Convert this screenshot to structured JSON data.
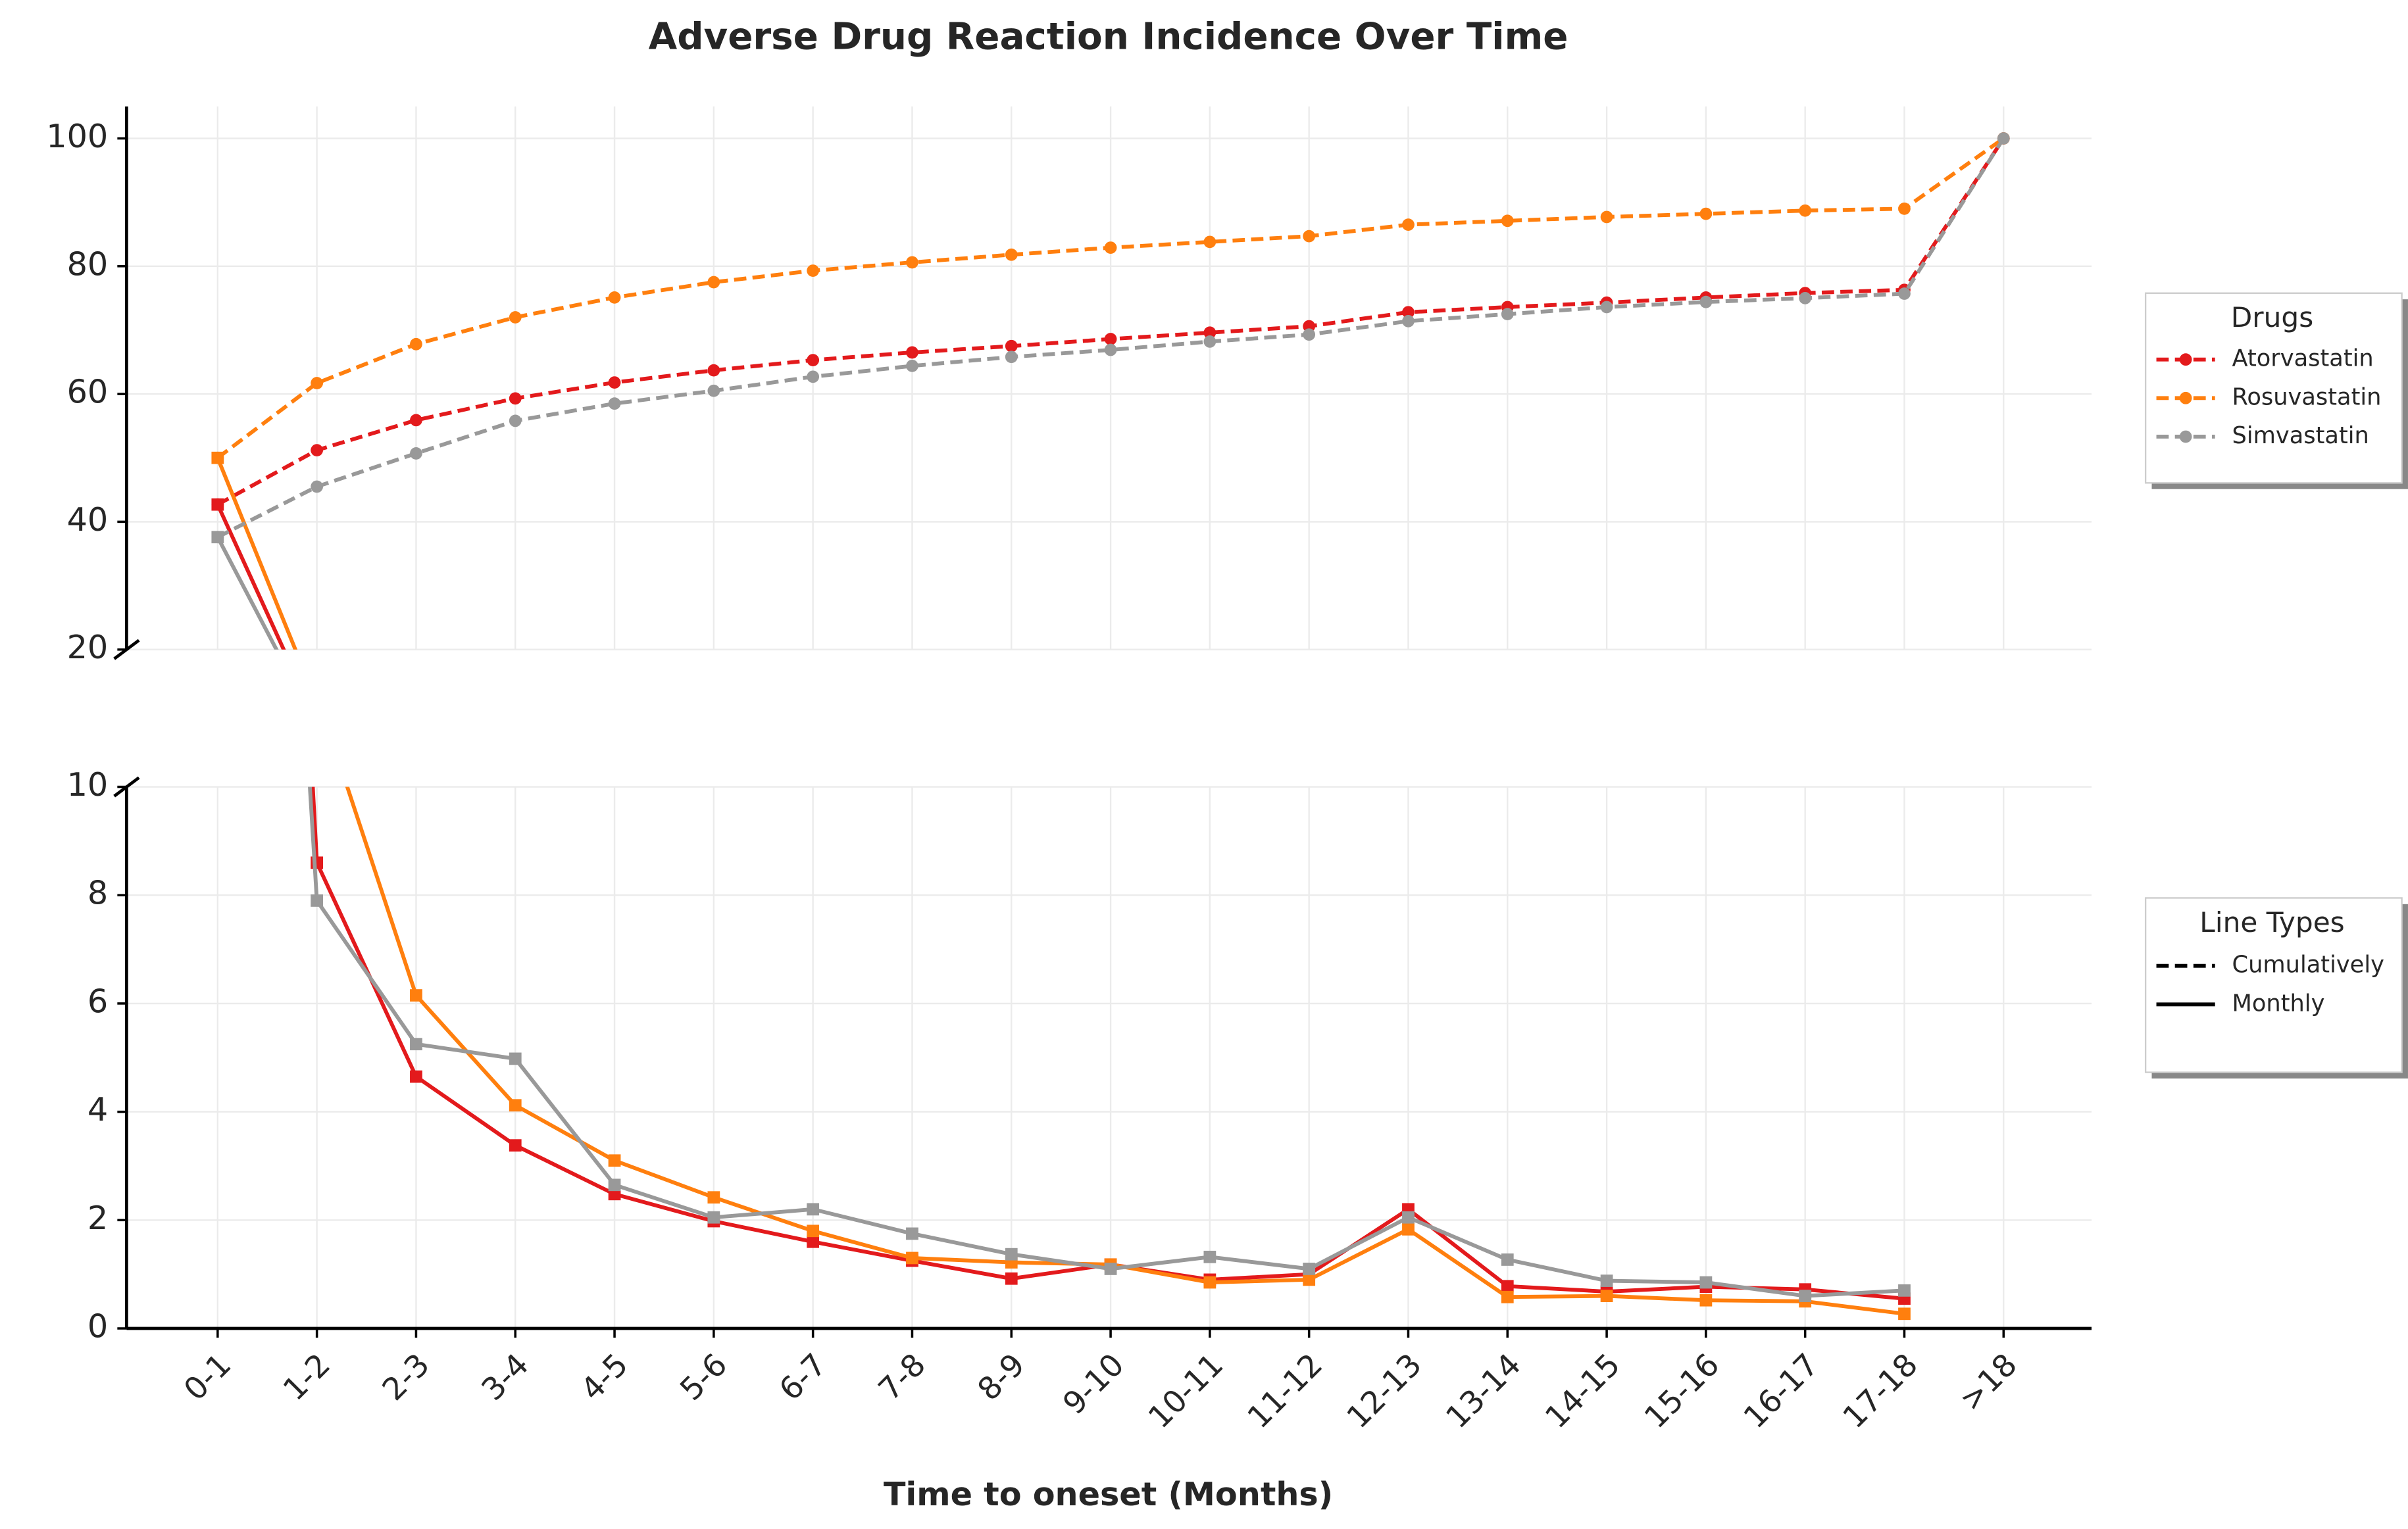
{
  "chart_data": {
    "type": "line",
    "title": "Adverse Drug Reaction Incidence Over Time",
    "xlabel": "Time to oneset (Months)",
    "categories": [
      "0-1",
      "1-2",
      "2-3",
      "3-4",
      "4-5",
      "5-6",
      "6-7",
      "7-8",
      "8-9",
      "9-10",
      "10-11",
      "11-12",
      "12-13",
      "13-14",
      "14-15",
      "15-16",
      "16-17",
      "17-18",
      ">18"
    ],
    "panels": [
      {
        "ylim": [
          20,
          105
        ],
        "yticks": [
          20,
          40,
          60,
          80,
          100
        ]
      },
      {
        "ylim": [
          0,
          10
        ],
        "yticks": [
          0,
          2,
          4,
          6,
          8,
          10
        ]
      }
    ],
    "grid": true,
    "legend_title": "Drugs",
    "line_types_title": "Line Types",
    "line_types": [
      {
        "label": "Cumulatively",
        "dashed": true
      },
      {
        "label": "Monthly",
        "dashed": false
      }
    ],
    "series": [
      {
        "name": "Atorvastatin",
        "color": "#e31a1c",
        "values": [
          [
            42.7,
            51.2,
            55.9,
            59.3,
            61.8,
            63.7,
            65.3,
            66.5,
            67.5,
            68.6,
            69.6,
            70.6,
            72.8,
            73.6,
            74.3,
            75.1,
            75.8,
            76.3,
            100
          ],
          [
            42.7,
            8.6,
            4.65,
            3.38,
            2.48,
            1.98,
            1.6,
            1.25,
            0.92,
            1.18,
            0.9,
            1.0,
            2.2,
            0.78,
            0.68,
            0.77,
            0.72,
            0.55,
            null
          ]
        ]
      },
      {
        "name": "Rosuvastatin",
        "color": "#ff7f0e",
        "values": [
          [
            50.0,
            61.7,
            67.8,
            72.0,
            75.1,
            77.5,
            79.3,
            80.6,
            81.8,
            82.9,
            83.8,
            84.7,
            86.5,
            87.1,
            87.7,
            88.2,
            88.7,
            89.0,
            100
          ],
          [
            50.0,
            11.7,
            6.15,
            4.12,
            3.1,
            2.42,
            1.8,
            1.3,
            1.22,
            1.18,
            0.85,
            0.9,
            1.83,
            0.58,
            0.6,
            0.52,
            0.5,
            0.27,
            null
          ]
        ]
      },
      {
        "name": "Simvastatin",
        "color": "#999999",
        "values": [
          [
            37.6,
            45.5,
            50.7,
            55.8,
            58.5,
            60.5,
            62.7,
            64.4,
            65.8,
            66.9,
            68.2,
            69.3,
            71.4,
            72.5,
            73.6,
            74.4,
            75.0,
            75.7,
            100
          ],
          [
            37.6,
            7.9,
            5.25,
            4.98,
            2.65,
            2.05,
            2.2,
            1.75,
            1.37,
            1.1,
            1.32,
            1.1,
            2.05,
            1.27,
            0.88,
            0.85,
            0.6,
            0.7,
            null
          ]
        ]
      }
    ]
  }
}
